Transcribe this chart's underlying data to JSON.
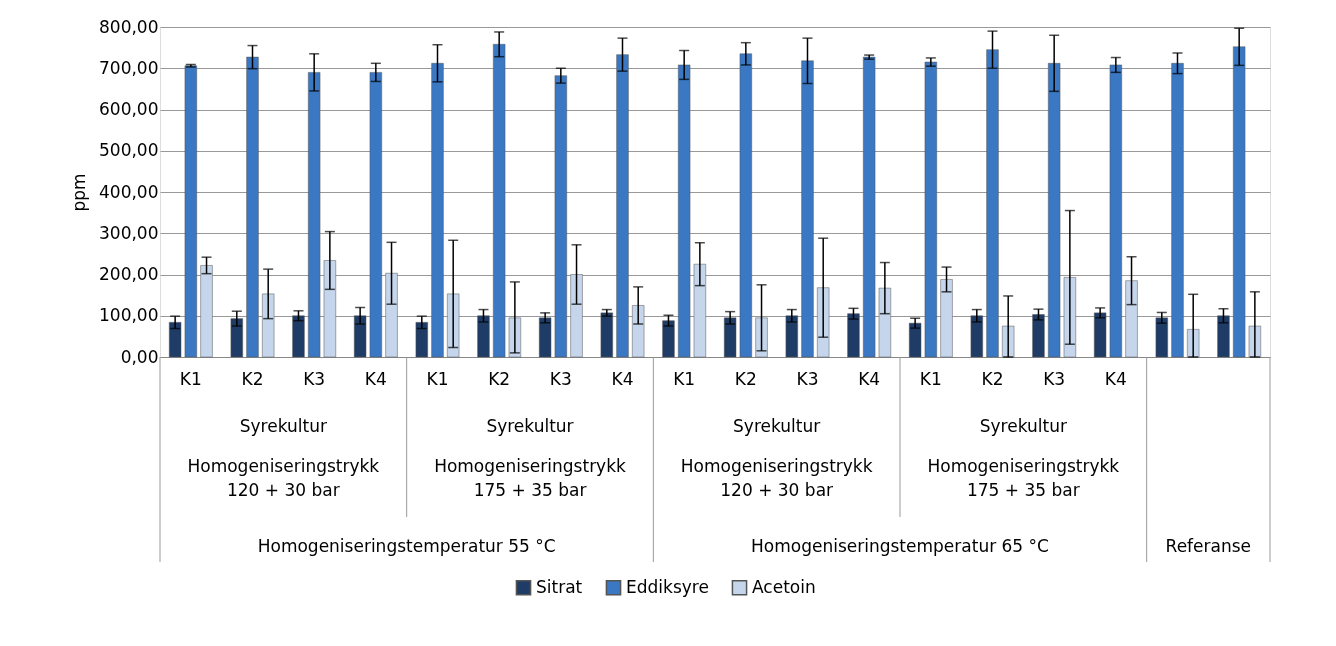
{
  "chart_data": {
    "type": "bar",
    "ylabel": "ppm",
    "categories": [
      "K1",
      "K2",
      "K3",
      "K4",
      "K1",
      "K2",
      "K3",
      "K4",
      "K1",
      "K2",
      "K3",
      "K4",
      "K1",
      "K2",
      "K3",
      "K4",
      null,
      null
    ],
    "series": [
      {
        "name": "Sitrat",
        "color": "#1f3c66",
        "values": [
          84,
          93,
          100,
          100,
          84,
          100,
          95,
          107,
          88,
          95,
          100,
          105,
          82,
          100,
          103,
          107,
          95,
          100
        ],
        "errors": [
          15,
          18,
          12,
          20,
          15,
          15,
          12,
          8,
          13,
          15,
          15,
          13,
          12,
          15,
          13,
          12,
          13,
          17
        ]
      },
      {
        "name": "Eddiksyre",
        "color": "#3a78c4",
        "values": [
          706,
          727,
          690,
          690,
          712,
          758,
          682,
          733,
          708,
          735,
          718,
          727,
          715,
          745,
          712,
          708,
          712,
          752
        ],
        "errors": [
          3,
          28,
          45,
          22,
          45,
          30,
          18,
          40,
          35,
          27,
          55,
          5,
          10,
          45,
          68,
          18,
          25,
          45
        ]
      },
      {
        "name": "Acetoin",
        "color": "#c5d6ec",
        "values": [
          222,
          153,
          234,
          203,
          153,
          95,
          200,
          125,
          225,
          95,
          168,
          167,
          188,
          75,
          193,
          185,
          67,
          75
        ],
        "errors": [
          20,
          60,
          70,
          75,
          130,
          [
            10,
            182
          ],
          72,
          45,
          52,
          80,
          120,
          62,
          30,
          [
            0,
            148
          ],
          162,
          58,
          [
            0,
            152
          ],
          [
            0,
            158
          ]
        ]
      }
    ],
    "ylim": [
      0,
      800
    ],
    "yticks": [
      {
        "value": 0,
        "label": "0,00"
      },
      {
        "value": 100,
        "label": "100,00"
      },
      {
        "value": 200,
        "label": "200,00"
      },
      {
        "value": 300,
        "label": "300,00"
      },
      {
        "value": 400,
        "label": "400,00"
      },
      {
        "value": 500,
        "label": "500,00"
      },
      {
        "value": 600,
        "label": "600,00"
      },
      {
        "value": 700,
        "label": "700,00"
      },
      {
        "value": 800,
        "label": "800,00"
      }
    ],
    "grid": "y",
    "legend": "bottom",
    "annotations": [
      "Syrekultur",
      "Homogeniseringstrykk 120 + 30 bar",
      "Syrekultur",
      "Homogeniseringstrykk 175 + 35 bar",
      "Syrekultur",
      "Homogeniseringstrykk 120 + 30 bar",
      "Syrekultur",
      "Homogeniseringstrykk 175 + 35 bar",
      "Homogeniseringstemperatur 55 °C",
      "Homogeniseringstemperatur 65 °C",
      "Referanse"
    ]
  }
}
